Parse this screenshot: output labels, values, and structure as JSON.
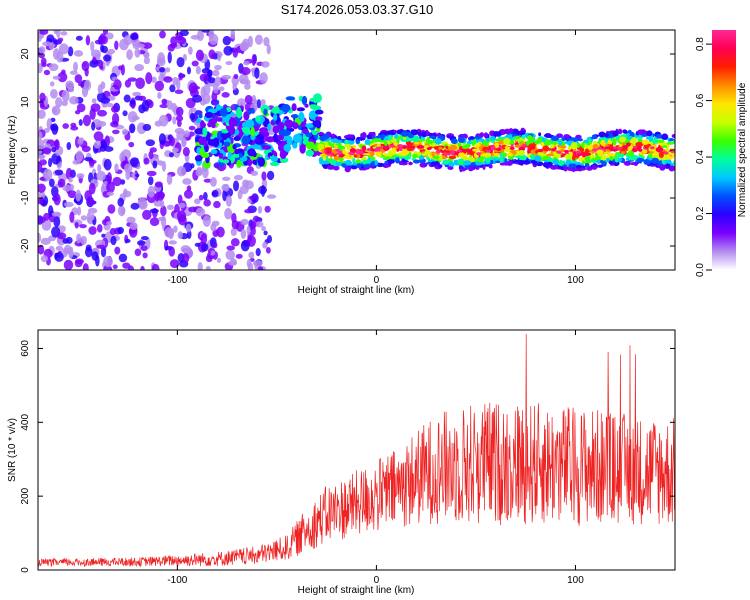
{
  "title": "S174.2026.053.03.37.G10",
  "chart_data": [
    {
      "type": "heatmap",
      "panel": "top",
      "xlabel": "Height of straight line (km)",
      "ylabel": "Frequency (Hz)",
      "xlim": [
        -170,
        150
      ],
      "ylim": [
        -25,
        25
      ],
      "xticks": [
        -100,
        0,
        100
      ],
      "yticks": [
        -20,
        -10,
        0,
        10,
        20
      ],
      "colorbar": {
        "label": "Normalized spectral amplitude",
        "range": [
          0.0,
          0.85
        ],
        "ticks": [
          0.0,
          0.2,
          0.4,
          0.6,
          0.8
        ],
        "colors": [
          "#ffffff",
          "#b48cf0",
          "#7a00ff",
          "#2a00ff",
          "#0050ff",
          "#00c8ff",
          "#00ff9c",
          "#3cff00",
          "#c8ff00",
          "#ffe600",
          "#ff8c00",
          "#ff1e00",
          "#ff0050",
          "#ff2896"
        ]
      },
      "signal_segments": [
        {
          "x_start": -170,
          "x_end": -50,
          "description_level": 0.1,
          "freq_center": 0,
          "freq_spread": 25
        },
        {
          "x_start": -90,
          "x_end": -28,
          "freq_center": 3,
          "freq_spread": 6,
          "level": 0.35
        },
        {
          "x_start": -28,
          "x_end": 150,
          "freq_center": 0,
          "freq_spread": 2.5,
          "level": 0.8
        }
      ]
    },
    {
      "type": "line",
      "panel": "bottom",
      "xlabel": "Height of straight line (km)",
      "ylabel": "SNR (10 * v/v)",
      "xlim": [
        -170,
        150
      ],
      "ylim": [
        0,
        650
      ],
      "xticks": [
        -100,
        0,
        100
      ],
      "yticks": [
        0,
        200,
        400,
        600
      ],
      "color": "#ee2222",
      "envelope": {
        "x": [
          -170,
          -120,
          -80,
          -60,
          -45,
          -35,
          -25,
          -10,
          0,
          10,
          20,
          30,
          50,
          70,
          90,
          110,
          130,
          150
        ],
        "mean": [
          20,
          22,
          30,
          40,
          60,
          110,
          150,
          180,
          200,
          220,
          250,
          275,
          290,
          290,
          285,
          280,
          270,
          265
        ],
        "spread": [
          10,
          12,
          20,
          25,
          35,
          60,
          80,
          90,
          100,
          110,
          130,
          150,
          170,
          170,
          165,
          160,
          150,
          150
        ],
        "peak_value": 640
      }
    }
  ]
}
